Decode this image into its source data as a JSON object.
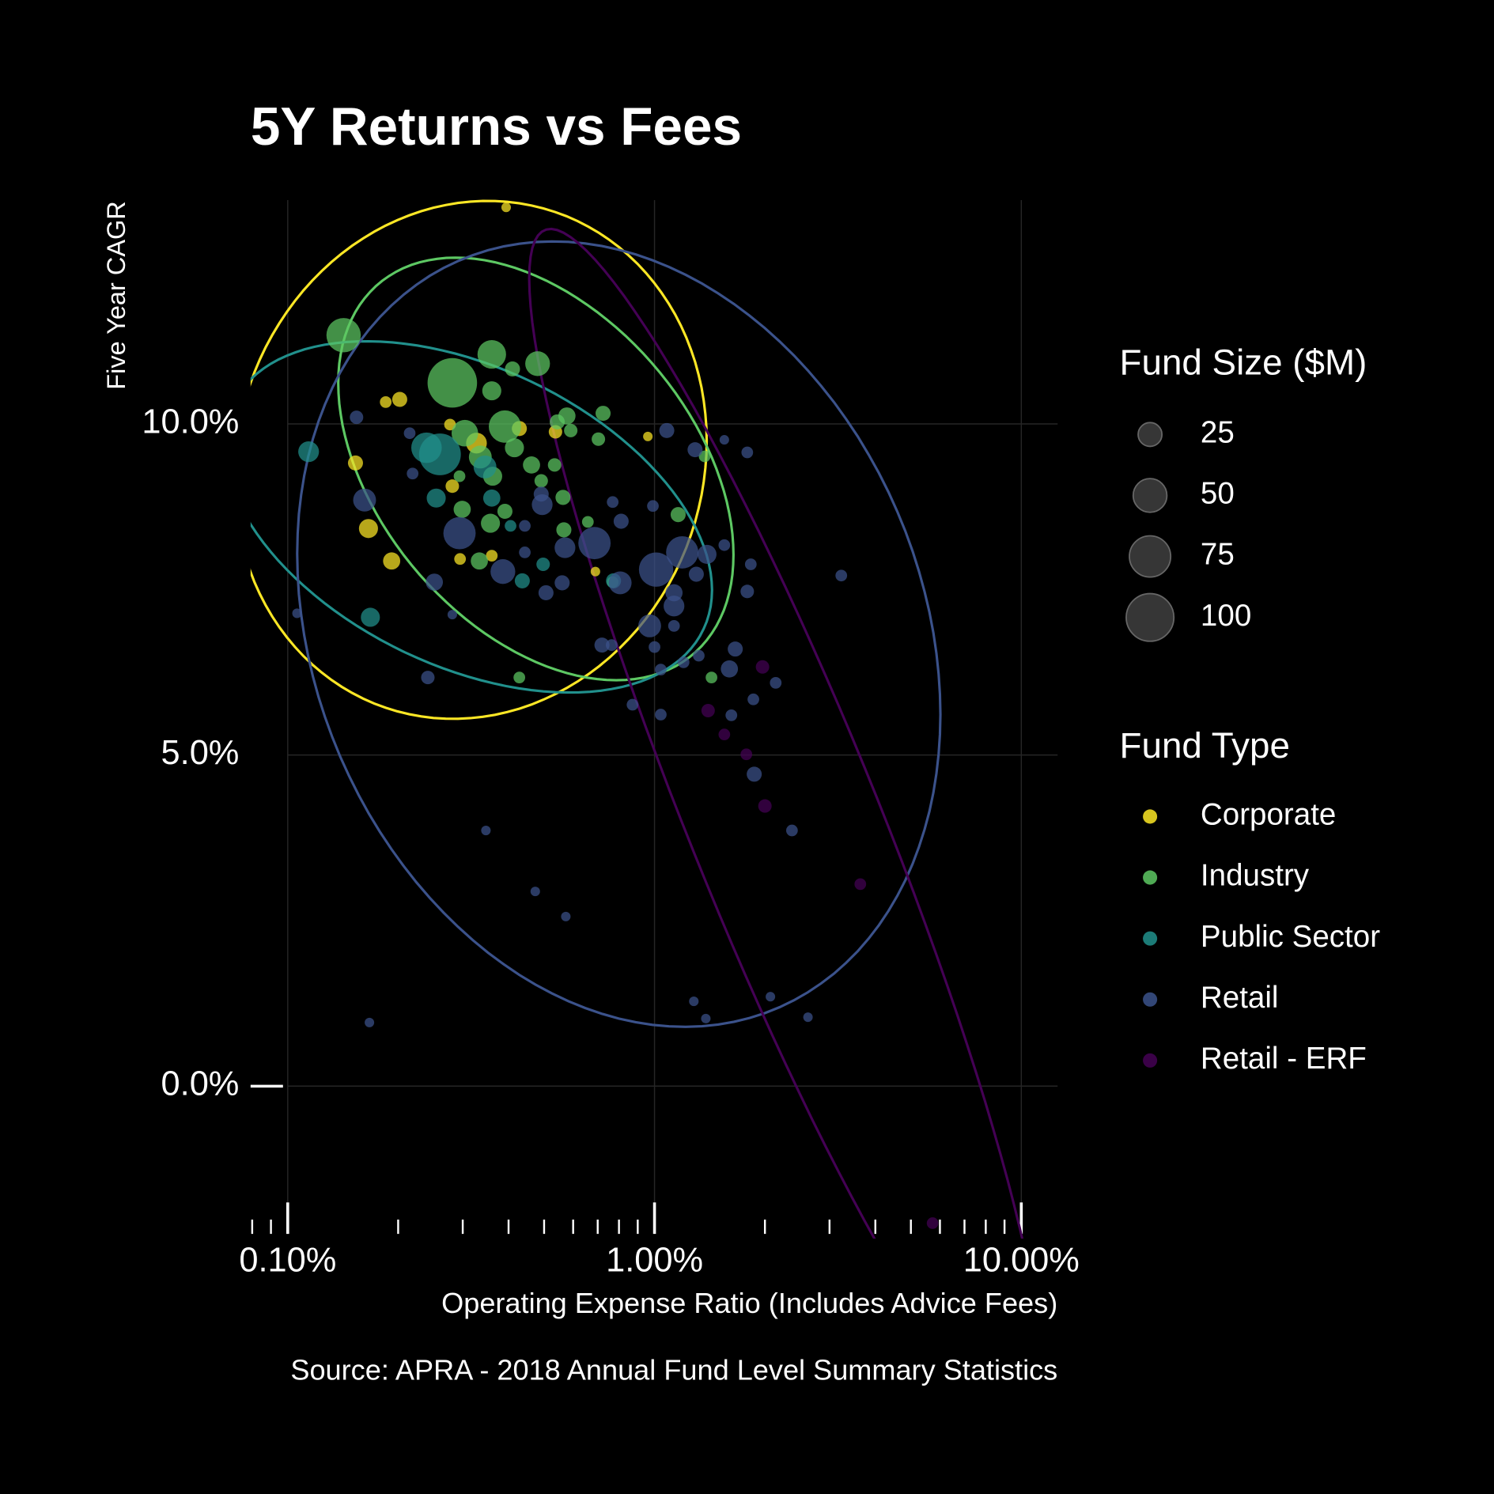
{
  "chart_data": {
    "type": "scatter",
    "title": "5Y Returns vs Fees",
    "x_label": "Operating Expense Ratio (Includes Advice Fees)",
    "y_label": "Five Year CAGR",
    "caption": "Source: APRA - 2018 Annual Fund Level Summary Statistics",
    "size_legend_title": "Fund Size ($M)",
    "size_legend": [
      25,
      50,
      75,
      100
    ],
    "color_legend_title": "Fund Type",
    "log_x": true,
    "grid": true,
    "ellipses": true,
    "xlim": [
      0.0792,
      12.56
    ],
    "ylim": [
      -2.16,
      13.38
    ],
    "xticks": [
      {
        "value": 0.1,
        "label": "0.10%"
      },
      {
        "value": 1,
        "label": "1.00%"
      },
      {
        "value": 10,
        "label": "10.00%"
      }
    ],
    "xticks_minor": [
      0.08,
      0.09,
      0.2,
      0.3,
      0.4,
      0.5,
      0.6,
      0.7,
      0.8,
      0.9,
      2,
      3,
      4,
      5,
      6,
      7,
      8,
      9
    ],
    "yticks": [
      {
        "value": 0,
        "label": "0.0%"
      },
      {
        "value": 5,
        "label": "5.0%"
      },
      {
        "value": 10,
        "label": "10.0%"
      }
    ],
    "series": [
      {
        "name": "Corporate",
        "color": "#FDE725",
        "x": [
          0.394,
          0.185,
          0.202,
          0.153,
          0.166,
          0.192,
          0.277,
          0.327,
          0.281,
          0.295,
          0.36,
          0.537,
          0.428,
          0.959,
          0.69
        ],
        "y": [
          13.27,
          10.33,
          10.37,
          9.41,
          8.42,
          7.93,
          9.99,
          9.71,
          9.06,
          7.96,
          8.01,
          9.88,
          9.93,
          9.81,
          7.77
        ],
        "size": [
          4,
          6,
          10,
          10,
          16,
          13,
          6,
          19,
          8,
          6,
          6,
          8,
          10,
          4,
          4
        ]
      },
      {
        "name": "Industry",
        "color": "#5DC863",
        "x": [
          0.142,
          0.281,
          0.36,
          0.48,
          0.41,
          0.36,
          0.391,
          0.304,
          0.415,
          0.462,
          0.335,
          0.362,
          0.491,
          0.534,
          0.577,
          0.543,
          0.591,
          0.724,
          0.703,
          0.563,
          0.566,
          0.299,
          0.357,
          0.391,
          0.333,
          0.294,
          0.658,
          1.16,
          1.37,
          1.43,
          0.428,
          0.769
        ],
        "y": [
          11.34,
          10.62,
          11.05,
          10.91,
          10.83,
          10.5,
          9.96,
          9.86,
          9.64,
          9.38,
          9.5,
          9.21,
          9.14,
          9.38,
          10.12,
          10.03,
          9.9,
          10.16,
          9.77,
          8.89,
          8.4,
          8.71,
          8.5,
          8.68,
          7.93,
          9.21,
          8.52,
          8.63,
          9.51,
          6.17,
          6.17,
          7.61
        ],
        "size": [
          52,
          108,
          36,
          27,
          10,
          16,
          46,
          31,
          16,
          13,
          23,
          16,
          8,
          8,
          13,
          10,
          8,
          10,
          8,
          10,
          10,
          13,
          16,
          10,
          13,
          6,
          6,
          10,
          6,
          6,
          6,
          6
        ]
      },
      {
        "name": "Public Sector",
        "color": "#21908C",
        "x": [
          0.114,
          0.168,
          0.26,
          0.239,
          0.345,
          0.254,
          0.36,
          0.436,
          0.497,
          0.405,
          0.773
        ],
        "y": [
          9.58,
          7.08,
          9.54,
          9.64,
          9.35,
          8.88,
          8.88,
          7.63,
          7.88,
          8.46,
          7.63
        ],
        "size": [
          19,
          16,
          77,
          41,
          23,
          16,
          13,
          10,
          8,
          6,
          10
        ]
      },
      {
        "name": "Retail",
        "color": "#3B528B",
        "x": [
          0.106,
          0.154,
          0.162,
          0.215,
          0.219,
          0.251,
          0.281,
          0.241,
          0.294,
          0.386,
          0.443,
          0.443,
          0.494,
          0.491,
          0.506,
          0.56,
          0.57,
          0.686,
          0.806,
          0.811,
          0.769,
          1.01,
          1.19,
          1.08,
          1.29,
          0.99,
          1.39,
          1.3,
          1.13,
          1.13,
          0.97,
          1.13,
          0.719,
          0.764,
          1.0,
          1.04,
          1.2,
          1.32,
          0.871,
          1.04,
          1.55,
          1.79,
          1.55,
          1.83,
          1.79,
          1.66,
          1.6,
          1.62,
          1.86,
          2.14,
          1.87,
          3.23,
          2.37,
          0.347,
          0.473,
          0.573,
          0.167,
          1.28,
          1.38,
          2.07,
          2.62
        ],
        "y": [
          7.14,
          10.1,
          8.85,
          9.86,
          9.25,
          7.61,
          7.12,
          6.17,
          8.35,
          7.77,
          8.06,
          8.46,
          8.78,
          8.94,
          7.45,
          7.6,
          8.13,
          8.2,
          7.6,
          8.53,
          8.82,
          7.8,
          8.06,
          9.9,
          9.61,
          8.76,
          8.03,
          7.73,
          7.45,
          7.25,
          6.95,
          6.95,
          6.66,
          6.66,
          6.63,
          6.29,
          6.4,
          6.5,
          5.76,
          5.61,
          9.76,
          9.57,
          8.17,
          7.88,
          7.47,
          6.6,
          6.3,
          5.6,
          5.84,
          6.09,
          4.71,
          7.71,
          3.86,
          3.86,
          2.94,
          2.56,
          0.96,
          1.28,
          1.02,
          1.35,
          1.04
        ],
        "size": [
          4,
          8,
          23,
          6,
          6,
          13,
          4,
          8,
          46,
          27,
          6,
          6,
          19,
          10,
          10,
          10,
          19,
          46,
          23,
          10,
          6,
          52,
          46,
          10,
          10,
          6,
          16,
          10,
          13,
          19,
          23,
          6,
          10,
          6,
          6,
          6,
          6,
          6,
          6,
          6,
          4,
          6,
          6,
          6,
          8,
          10,
          13,
          6,
          6,
          6,
          10,
          6,
          6,
          4,
          4,
          4,
          4,
          4,
          4,
          4,
          4
        ]
      },
      {
        "name": "Retail - ERF",
        "color": "#440154",
        "x": [
          1.4,
          1.97,
          1.55,
          1.78,
          2.0,
          3.64,
          5.73
        ],
        "y": [
          5.67,
          6.33,
          5.31,
          5.01,
          4.23,
          3.05,
          -2.07
        ],
        "size": [
          8,
          8,
          6,
          6,
          8,
          6,
          6
        ]
      }
    ]
  }
}
